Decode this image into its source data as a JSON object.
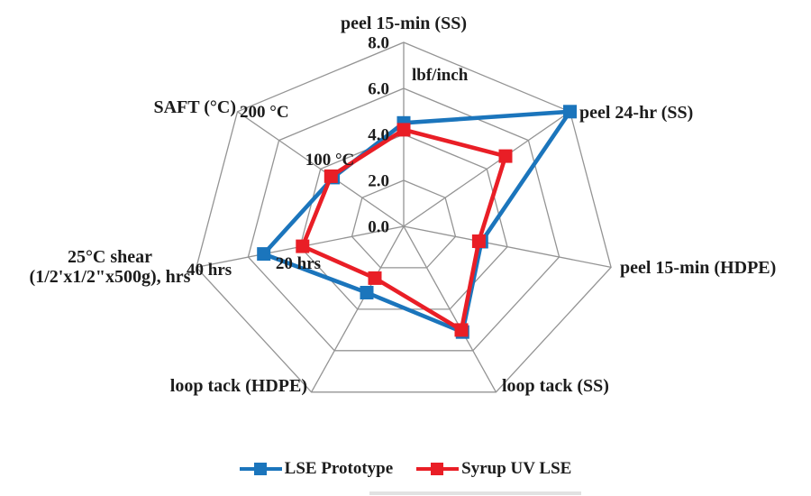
{
  "chart_data": {
    "type": "radar",
    "num_axes": 7,
    "axes": [
      {
        "id": "peel-15min-ss",
        "label": "peel 15-min (SS)"
      },
      {
        "id": "peel-24hr-ss",
        "label": "peel 24-hr (SS)"
      },
      {
        "id": "peel-15min-hdpe",
        "label": "peel 15-min (HDPE)"
      },
      {
        "id": "loop-tack-ss",
        "label": "loop tack (SS)"
      },
      {
        "id": "loop-tack-hdpe",
        "label": "loop tack (HDPE)"
      },
      {
        "id": "shear-25c",
        "label_lines": [
          "25°C shear",
          "(1/2'x1/2\"x500g), hrs"
        ]
      },
      {
        "id": "saft",
        "label": "SAFT (°C)"
      }
    ],
    "radial_axis": {
      "unit": "lbf/inch",
      "ticks": [
        "0.0",
        "2.0",
        "4.0",
        "6.0",
        "8.0"
      ],
      "range": [
        0,
        8
      ],
      "rings": 4
    },
    "scale_labels": {
      "unit": "lbf/inch",
      "saft_mid": "100 °C",
      "saft_max": "200 °C",
      "shear_mid": "20 hrs",
      "shear_max": "40 hrs"
    },
    "series": [
      {
        "name": "LSE Prototype",
        "color": "#1b75bc",
        "values": [
          4.5,
          8.0,
          3.0,
          5.1,
          3.2,
          5.4,
          3.4
        ],
        "shear_25c_hrs": 27,
        "saft_c": 85
      },
      {
        "name": "Syrup UV LSE",
        "color": "#e91e26",
        "values": [
          4.2,
          4.9,
          2.9,
          5.0,
          2.5,
          3.9,
          3.5
        ],
        "shear_25c_hrs": 19.5,
        "saft_c": 87
      }
    ],
    "grid_color": "#949494",
    "text_color": "#1c1c1c",
    "legend_position": "bottom"
  },
  "legend": {
    "items": [
      {
        "label": "LSE Prototype",
        "series_index": 0
      },
      {
        "label": "Syrup UV LSE",
        "series_index": 1
      }
    ]
  }
}
